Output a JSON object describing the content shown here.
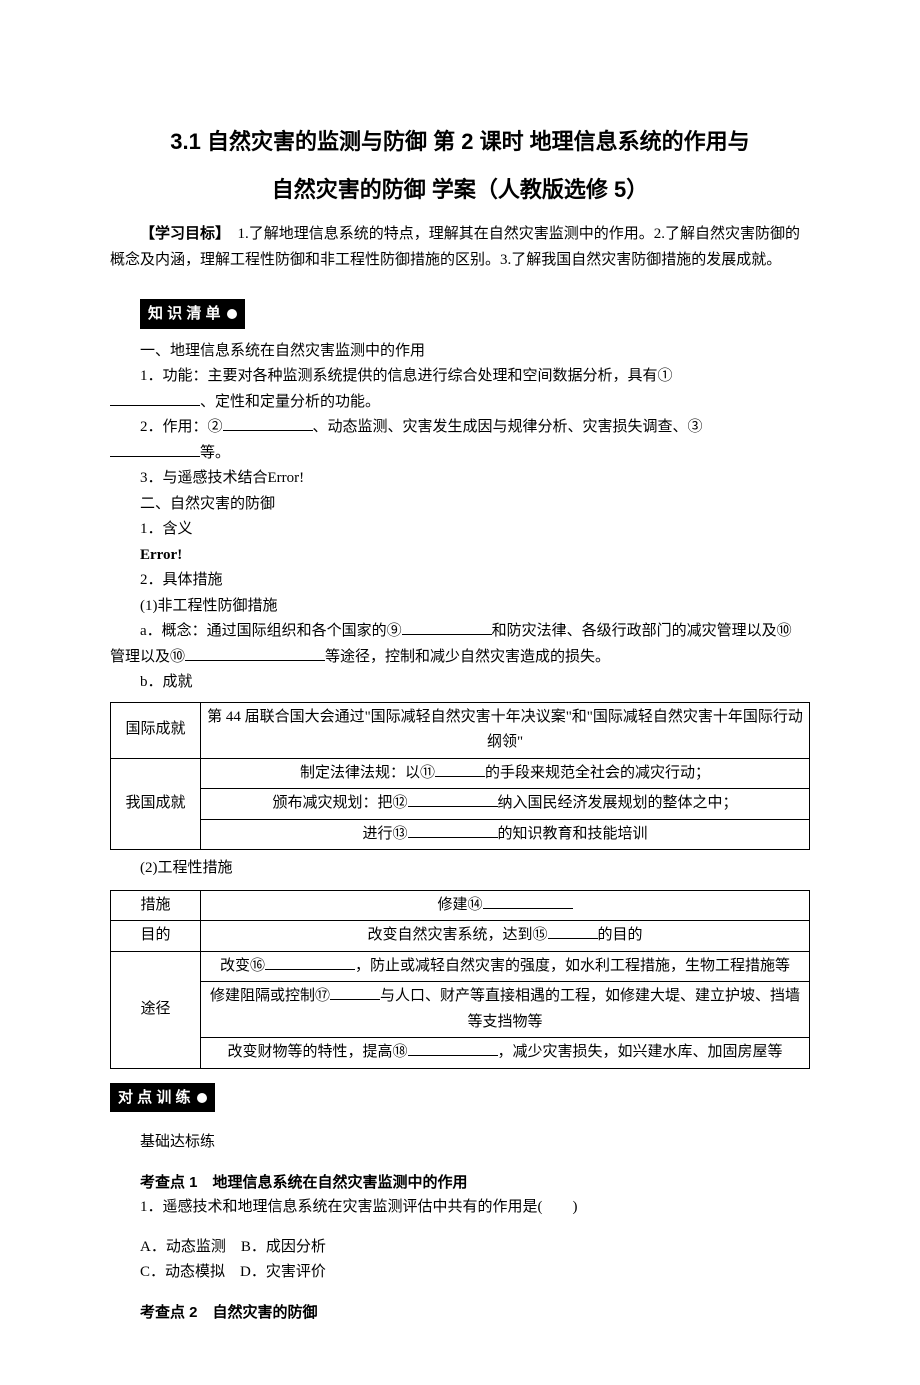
{
  "title": {
    "line1": "3.1 自然灾害的监测与防御 第 2 课时  地理信息系统的作用与",
    "line2": "自然灾害的防御  学案（人教版选修 5）"
  },
  "objectives": {
    "label": "【学习目标】",
    "text": "　1.了解地理信息系统的特点，理解其在自然灾害监测中的作用。2.了解自然灾害防御的概念及内涵，理解工程性防御和非工程性防御措施的区别。3.了解我国自然灾害防御措施的发展成就。"
  },
  "banners": {
    "knowledge": "知 识 清 单",
    "practice": "对 点 训 练"
  },
  "section1": {
    "heading": "一、地理信息系统在自然灾害监测中的作用",
    "item1_pre": "1．功能：主要对各种监测系统提供的信息进行综合处理和空间数据分析，具有①",
    "item1_suf": "、定性和定量分析的功能。",
    "item2_pre": "2．作用：②",
    "item2_mid": "、动态监测、灾害发生成因与规律分析、灾害损失调查、③",
    "item2_suf": "等。",
    "item3": "3．与遥感技术结合Error!"
  },
  "section2": {
    "heading": "二、自然灾害的防御",
    "sub1": "1．含义",
    "err": "Error!",
    "sub2": "2．具体措施",
    "sub2_1": "(1)非工程性防御措施",
    "a_pre": "a．概念：通过国际组织和各个国家的⑨",
    "a_mid1": "和防灾法律、各级行政部门的减灾管理以及⑩",
    "a_suf": "等途径，控制和减少自然灾害造成的损失。",
    "b": "b．成就"
  },
  "table1": {
    "row1_h": "国际成就",
    "row1_c": "第 44 届联合国大会通过\"国际减轻自然灾害十年决议案\"和\"国际减轻自然灾害十年国际行动纲领\"",
    "row2_h": "我国成就",
    "row2_c1_pre": "制定法律法规：以⑪",
    "row2_c1_suf": "的手段来规范全社会的减灾行动；",
    "row2_c2_pre": "颁布减灾规划：把⑫",
    "row2_c2_suf": "纳入国民经济发展规划的整体之中；",
    "row2_c3_pre": "进行⑬",
    "row2_c3_suf": "的知识教育和技能培训"
  },
  "sub2_2": "(2)工程性措施",
  "table2": {
    "r1_h": "措施",
    "r1_c": "修建⑭",
    "r2_h": "目的",
    "r2_c_pre": "改变自然灾害系统，达到⑮",
    "r2_c_suf": "的目的",
    "r3_h": "途径",
    "r3_c1_pre": "改变⑯",
    "r3_c1_suf": "，防止或减轻自然灾害的强度，如水利工程措施，生物工程措施等",
    "r3_c2_pre": "修建阻隔或控制⑰",
    "r3_c2_suf": "与人口、财产等直接相遇的工程，如修建大堤、建立护坡、挡墙等支挡物等",
    "r3_c3_pre": "改变财物等的特性，提高⑱",
    "r3_c3_suf": "，减少灾害损失，如兴建水库、加固房屋等"
  },
  "practice": {
    "base": "基础达标练",
    "kp1": "考查点 1　地理信息系统在自然灾害监测中的作用",
    "q1": "1．遥感技术和地理信息系统在灾害监测评估中共有的作用是(　　)",
    "opts": {
      "a": "A．动态监测",
      "b": "B．成因分析",
      "c": "C．动态模拟",
      "d": "D．灾害评价"
    },
    "kp2": "考查点 2　自然灾害的防御"
  },
  "style": {
    "body_font_size": 15,
    "title_font_size": 22,
    "text_color": "#000000",
    "bg_color": "#ffffff",
    "banner_bg": "#000000",
    "banner_fg": "#ffffff",
    "border_color": "#000000"
  }
}
